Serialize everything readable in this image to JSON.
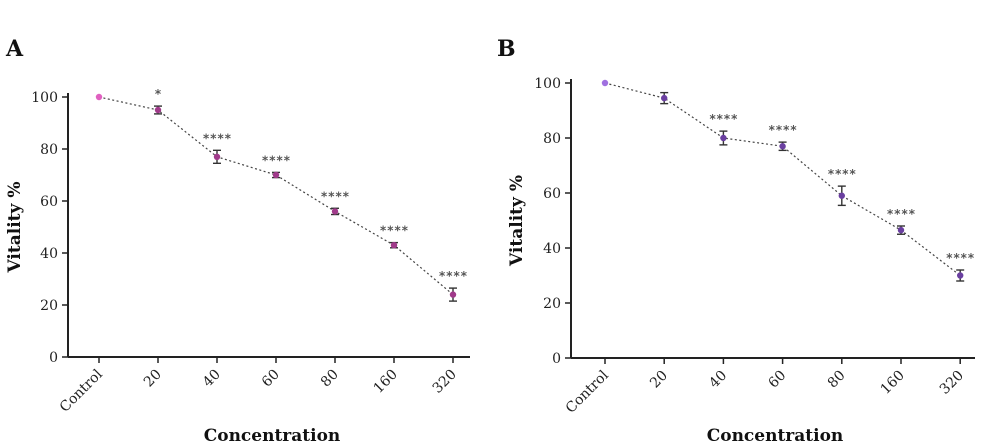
{
  "chart_data": [
    {
      "type": "line",
      "panel_label": "A",
      "title": "",
      "xlabel": "Concentration",
      "ylabel": "Vitality %",
      "categories": [
        "Control",
        "20",
        "40",
        "60",
        "80",
        "160",
        "320"
      ],
      "ylim": [
        0,
        100
      ],
      "yticks": [
        0,
        20,
        40,
        60,
        80,
        100
      ],
      "grid": false,
      "legend": "none",
      "series": [
        {
          "values": [
            100,
            95,
            77,
            70,
            56,
            43,
            24
          ],
          "errors": [
            0,
            1.5,
            2.5,
            1,
            1.2,
            1,
            2.5
          ],
          "significance": [
            "",
            "*",
            "****",
            "****",
            "****",
            "****",
            "****"
          ]
        }
      ],
      "colors": {
        "control_marker": "#e060c0",
        "marker": "#a03a8a",
        "significance": "#555555"
      }
    },
    {
      "type": "line",
      "panel_label": "B",
      "title": "",
      "xlabel": "Concentration",
      "ylabel": "Vitality %",
      "categories": [
        "Control",
        "20",
        "40",
        "60",
        "80",
        "160",
        "320"
      ],
      "ylim": [
        0,
        100
      ],
      "yticks": [
        0,
        20,
        40,
        60,
        80,
        100
      ],
      "grid": false,
      "legend": "none",
      "series": [
        {
          "values": [
            100,
            94.5,
            80,
            77,
            59,
            46.5,
            30
          ],
          "errors": [
            0,
            2,
            2.5,
            1.5,
            3.5,
            1.5,
            2
          ],
          "significance": [
            "",
            "",
            "****",
            "****",
            "****",
            "****",
            "****"
          ]
        }
      ],
      "colors": {
        "control_marker": "#a070e0",
        "marker": "#6a3fa0",
        "significance": "#555555"
      }
    }
  ]
}
